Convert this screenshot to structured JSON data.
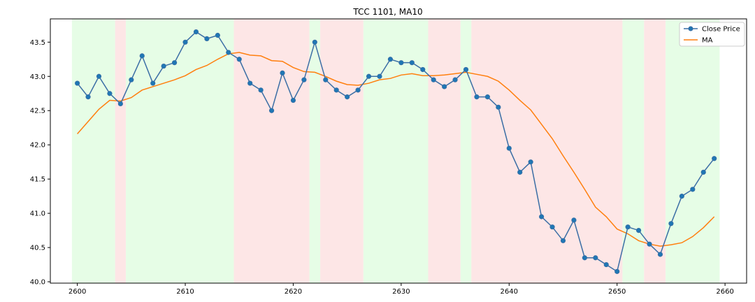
{
  "chart_data": {
    "type": "line",
    "title": "TCC 1101, MA10",
    "xlabel": "",
    "ylabel": "",
    "xlim": [
      2597.5,
      2662.0
    ],
    "ylim": [
      39.98,
      43.84
    ],
    "x_ticks": [
      2600,
      2610,
      2620,
      2630,
      2640,
      2650,
      2660
    ],
    "y_ticks": [
      40.0,
      40.5,
      41.0,
      41.5,
      42.0,
      42.5,
      43.0,
      43.5
    ],
    "grid": false,
    "legend_position": "top-right",
    "colors": {
      "close": "#3b6ea5",
      "close_marker": "#1f77b4",
      "ma": "#ff7f0e",
      "up_band": "#e6fde6",
      "down_band": "#fde6e6"
    },
    "x": [
      2600,
      2601,
      2602,
      2603,
      2604,
      2605,
      2606,
      2607,
      2608,
      2609,
      2610,
      2611,
      2612,
      2613,
      2614,
      2615,
      2616,
      2617,
      2618,
      2619,
      2620,
      2621,
      2622,
      2623,
      2624,
      2625,
      2626,
      2627,
      2628,
      2629,
      2630,
      2631,
      2632,
      2633,
      2634,
      2635,
      2636,
      2637,
      2638,
      2639,
      2640,
      2641,
      2642,
      2643,
      2644,
      2645,
      2646,
      2647,
      2648,
      2649,
      2650,
      2651,
      2652,
      2653,
      2654,
      2655,
      2656,
      2657,
      2658,
      2659
    ],
    "series": [
      {
        "name": "Close Price",
        "values": [
          42.9,
          42.7,
          43.0,
          42.75,
          42.6,
          42.95,
          43.3,
          42.9,
          43.15,
          43.2,
          43.5,
          43.65,
          43.55,
          43.6,
          43.35,
          43.25,
          42.9,
          42.8,
          42.5,
          43.05,
          42.65,
          42.95,
          43.5,
          42.95,
          42.8,
          42.7,
          42.8,
          43.0,
          43.0,
          43.25,
          43.2,
          43.2,
          43.1,
          42.95,
          42.85,
          42.95,
          43.1,
          42.7,
          42.7,
          42.55,
          41.95,
          41.6,
          41.75,
          40.95,
          40.8,
          40.6,
          40.9,
          40.35,
          40.35,
          40.25,
          40.15,
          40.8,
          40.75,
          40.55,
          40.4,
          40.85,
          41.25,
          41.35,
          41.6,
          41.8
        ]
      },
      {
        "name": "MA",
        "values": [
          42.16,
          42.34,
          42.52,
          42.65,
          42.64,
          42.69,
          42.8,
          42.85,
          42.9,
          42.95,
          43.01,
          43.1,
          43.16,
          43.25,
          43.33,
          43.35,
          43.31,
          43.3,
          43.23,
          43.22,
          43.13,
          43.07,
          43.06,
          43.0,
          42.93,
          42.88,
          42.87,
          42.9,
          42.95,
          42.97,
          43.02,
          43.04,
          43.01,
          43.01,
          43.02,
          43.04,
          43.06,
          43.03,
          43.0,
          42.93,
          42.8,
          42.65,
          42.51,
          42.3,
          42.09,
          41.84,
          41.6,
          41.35,
          41.09,
          40.95,
          40.77,
          40.7,
          40.6,
          40.55,
          40.52,
          40.54,
          40.57,
          40.66,
          40.79,
          40.95
        ]
      }
    ],
    "bands": [
      {
        "from": 2599.5,
        "to": 2603.5,
        "trend": "up"
      },
      {
        "from": 2603.5,
        "to": 2604.5,
        "trend": "down"
      },
      {
        "from": 2604.5,
        "to": 2614.5,
        "trend": "up"
      },
      {
        "from": 2614.5,
        "to": 2621.5,
        "trend": "down"
      },
      {
        "from": 2621.5,
        "to": 2622.5,
        "trend": "up"
      },
      {
        "from": 2622.5,
        "to": 2626.5,
        "trend": "down"
      },
      {
        "from": 2626.5,
        "to": 2632.5,
        "trend": "up"
      },
      {
        "from": 2632.5,
        "to": 2635.5,
        "trend": "down"
      },
      {
        "from": 2635.5,
        "to": 2636.5,
        "trend": "up"
      },
      {
        "from": 2636.5,
        "to": 2650.5,
        "trend": "down"
      },
      {
        "from": 2650.5,
        "to": 2652.5,
        "trend": "up"
      },
      {
        "from": 2652.5,
        "to": 2654.5,
        "trend": "down"
      },
      {
        "from": 2654.5,
        "to": 2659.5,
        "trend": "up"
      }
    ]
  }
}
